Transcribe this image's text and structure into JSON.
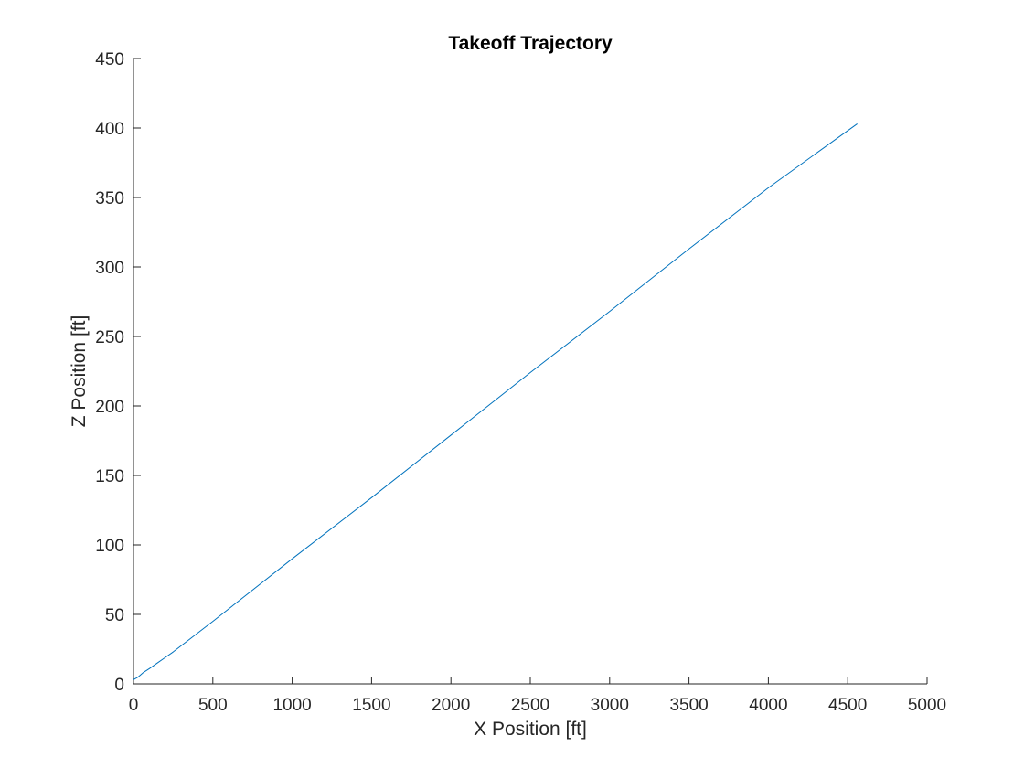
{
  "chart_data": {
    "type": "line",
    "title": "Takeoff Trajectory",
    "xlabel": "X Position [ft]",
    "ylabel": "Z Position [ft]",
    "xlim": [
      0,
      5000
    ],
    "ylim": [
      0,
      450
    ],
    "xticks": [
      0,
      500,
      1000,
      1500,
      2000,
      2500,
      3000,
      3500,
      4000,
      4500,
      5000
    ],
    "yticks": [
      0,
      50,
      100,
      150,
      200,
      250,
      300,
      350,
      400,
      450
    ],
    "grid": false,
    "legend": "none",
    "series": [
      {
        "color": "#0072BD",
        "x": [
          0,
          30,
          60,
          100,
          150,
          200,
          250,
          500,
          1000,
          1500,
          2000,
          2500,
          3000,
          3500,
          4000,
          4560
        ],
        "y": [
          3,
          5,
          8,
          11,
          15,
          19,
          23,
          45,
          90,
          134,
          179,
          224,
          268,
          313,
          357,
          403
        ]
      }
    ]
  }
}
